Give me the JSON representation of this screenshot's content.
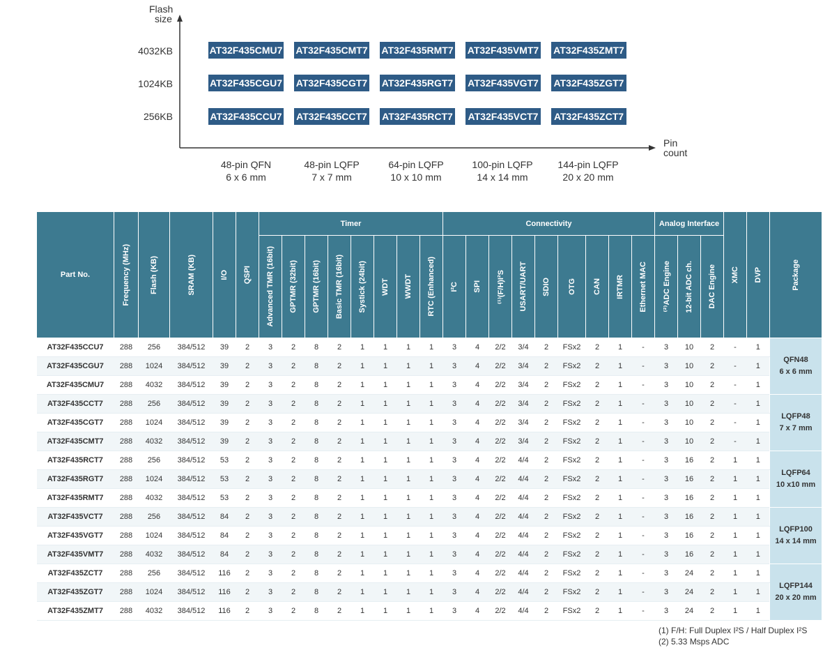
{
  "diagram": {
    "y_axis_label": [
      "Flash",
      "size"
    ],
    "x_axis_label": [
      "Pin",
      "count"
    ],
    "flash_sizes": [
      "4032KB",
      "1024KB",
      "256KB"
    ],
    "grid": [
      [
        "AT32F435CMU7",
        "AT32F435CMT7",
        "AT32F435RMT7",
        "AT32F435VMT7",
        "AT32F435ZMT7"
      ],
      [
        "AT32F435CGU7",
        "AT32F435CGT7",
        "AT32F435RGT7",
        "AT32F435VGT7",
        "AT32F435ZGT7"
      ],
      [
        "AT32F435CCU7",
        "AT32F435CCT7",
        "AT32F435RCT7",
        "AT32F435VCT7",
        "AT32F435ZCT7"
      ]
    ],
    "packages": [
      {
        "name": "48-pin QFN",
        "size": "6 x 6 mm"
      },
      {
        "name": "48-pin LQFP",
        "size": "7 x 7 mm"
      },
      {
        "name": "64-pin LQFP",
        "size": "10 x 10 mm"
      },
      {
        "name": "100-pin LQFP",
        "size": "14 x 14 mm"
      },
      {
        "name": "144-pin LQFP",
        "size": "20 x 20 mm"
      }
    ],
    "colors": {
      "chip_bg": "#2e5b86",
      "chip_text": "#ffffff"
    }
  },
  "table": {
    "header": {
      "part_no": "Part No.",
      "frequency": "Frequency (MHz)",
      "flash": "Flash (KB)",
      "sram": "SRAM (KB)",
      "io": "I/O",
      "qspi": "QSPI",
      "timer_group": "Timer",
      "timer": [
        "Advanced TMR (16bit)",
        "GPTMR (32bit)",
        "GPTMR (16bit)",
        "Basic TMR (16bit)",
        "Systick (24bit)",
        "WDT",
        "WWDT",
        "RTC (Enhanced)"
      ],
      "conn_group": "Connectivity",
      "conn": [
        "I²C",
        "SPI",
        "⁽¹⁾(F/H)I²S",
        "USART/UART",
        "SDIO",
        "OTG",
        "CAN",
        "IRTMR",
        "Ethernet MAC"
      ],
      "analog_group": "Analog Interface",
      "analog": [
        "⁽²⁾ADC Engine",
        "12-bit ADC ch.",
        "DAC Engine"
      ],
      "xmc": "XMC",
      "dvp": "DVP",
      "package": "Package"
    },
    "rows": [
      [
        "AT32F435CCU7",
        "288",
        "256",
        "384/512",
        "39",
        "2",
        "3",
        "2",
        "8",
        "2",
        "1",
        "1",
        "1",
        "1",
        "3",
        "4",
        "2/2",
        "3/4",
        "2",
        "FSx2",
        "2",
        "1",
        "-",
        "3",
        "10",
        "2",
        "-",
        "1"
      ],
      [
        "AT32F435CGU7",
        "288",
        "1024",
        "384/512",
        "39",
        "2",
        "3",
        "2",
        "8",
        "2",
        "1",
        "1",
        "1",
        "1",
        "3",
        "4",
        "2/2",
        "3/4",
        "2",
        "FSx2",
        "2",
        "1",
        "-",
        "3",
        "10",
        "2",
        "-",
        "1"
      ],
      [
        "AT32F435CMU7",
        "288",
        "4032",
        "384/512",
        "39",
        "2",
        "3",
        "2",
        "8",
        "2",
        "1",
        "1",
        "1",
        "1",
        "3",
        "4",
        "2/2",
        "3/4",
        "2",
        "FSx2",
        "2",
        "1",
        "-",
        "3",
        "10",
        "2",
        "-",
        "1"
      ],
      [
        "AT32F435CCT7",
        "288",
        "256",
        "384/512",
        "39",
        "2",
        "3",
        "2",
        "8",
        "2",
        "1",
        "1",
        "1",
        "1",
        "3",
        "4",
        "2/2",
        "3/4",
        "2",
        "FSx2",
        "2",
        "1",
        "-",
        "3",
        "10",
        "2",
        "-",
        "1"
      ],
      [
        "AT32F435CGT7",
        "288",
        "1024",
        "384/512",
        "39",
        "2",
        "3",
        "2",
        "8",
        "2",
        "1",
        "1",
        "1",
        "1",
        "3",
        "4",
        "2/2",
        "3/4",
        "2",
        "FSx2",
        "2",
        "1",
        "-",
        "3",
        "10",
        "2",
        "-",
        "1"
      ],
      [
        "AT32F435CMT7",
        "288",
        "4032",
        "384/512",
        "39",
        "2",
        "3",
        "2",
        "8",
        "2",
        "1",
        "1",
        "1",
        "1",
        "3",
        "4",
        "2/2",
        "3/4",
        "2",
        "FSx2",
        "2",
        "1",
        "-",
        "3",
        "10",
        "2",
        "-",
        "1"
      ],
      [
        "AT32F435RCT7",
        "288",
        "256",
        "384/512",
        "53",
        "2",
        "3",
        "2",
        "8",
        "2",
        "1",
        "1",
        "1",
        "1",
        "3",
        "4",
        "2/2",
        "4/4",
        "2",
        "FSx2",
        "2",
        "1",
        "-",
        "3",
        "16",
        "2",
        "1",
        "1"
      ],
      [
        "AT32F435RGT7",
        "288",
        "1024",
        "384/512",
        "53",
        "2",
        "3",
        "2",
        "8",
        "2",
        "1",
        "1",
        "1",
        "1",
        "3",
        "4",
        "2/2",
        "4/4",
        "2",
        "FSx2",
        "2",
        "1",
        "-",
        "3",
        "16",
        "2",
        "1",
        "1"
      ],
      [
        "AT32F435RMT7",
        "288",
        "4032",
        "384/512",
        "53",
        "2",
        "3",
        "2",
        "8",
        "2",
        "1",
        "1",
        "1",
        "1",
        "3",
        "4",
        "2/2",
        "4/4",
        "2",
        "FSx2",
        "2",
        "1",
        "-",
        "3",
        "16",
        "2",
        "1",
        "1"
      ],
      [
        "AT32F435VCT7",
        "288",
        "256",
        "384/512",
        "84",
        "2",
        "3",
        "2",
        "8",
        "2",
        "1",
        "1",
        "1",
        "1",
        "3",
        "4",
        "2/2",
        "4/4",
        "2",
        "FSx2",
        "2",
        "1",
        "-",
        "3",
        "16",
        "2",
        "1",
        "1"
      ],
      [
        "AT32F435VGT7",
        "288",
        "1024",
        "384/512",
        "84",
        "2",
        "3",
        "2",
        "8",
        "2",
        "1",
        "1",
        "1",
        "1",
        "3",
        "4",
        "2/2",
        "4/4",
        "2",
        "FSx2",
        "2",
        "1",
        "-",
        "3",
        "16",
        "2",
        "1",
        "1"
      ],
      [
        "AT32F435VMT7",
        "288",
        "4032",
        "384/512",
        "84",
        "2",
        "3",
        "2",
        "8",
        "2",
        "1",
        "1",
        "1",
        "1",
        "3",
        "4",
        "2/2",
        "4/4",
        "2",
        "FSx2",
        "2",
        "1",
        "-",
        "3",
        "16",
        "2",
        "1",
        "1"
      ],
      [
        "AT32F435ZCT7",
        "288",
        "256",
        "384/512",
        "116",
        "2",
        "3",
        "2",
        "8",
        "2",
        "1",
        "1",
        "1",
        "1",
        "3",
        "4",
        "2/2",
        "4/4",
        "2",
        "FSx2",
        "2",
        "1",
        "-",
        "3",
        "24",
        "2",
        "1",
        "1"
      ],
      [
        "AT32F435ZGT7",
        "288",
        "1024",
        "384/512",
        "116",
        "2",
        "3",
        "2",
        "8",
        "2",
        "1",
        "1",
        "1",
        "1",
        "3",
        "4",
        "2/2",
        "4/4",
        "2",
        "FSx2",
        "2",
        "1",
        "-",
        "3",
        "24",
        "2",
        "1",
        "1"
      ],
      [
        "AT32F435ZMT7",
        "288",
        "4032",
        "384/512",
        "116",
        "2",
        "3",
        "2",
        "8",
        "2",
        "1",
        "1",
        "1",
        "1",
        "3",
        "4",
        "2/2",
        "4/4",
        "2",
        "FSx2",
        "2",
        "1",
        "-",
        "3",
        "24",
        "2",
        "1",
        "1"
      ]
    ],
    "packages": [
      {
        "name": "QFN48",
        "size": "6 x 6 mm"
      },
      {
        "name": "LQFP48",
        "size": "7 x 7 mm"
      },
      {
        "name": "LQFP64",
        "size": "10 x10 mm"
      },
      {
        "name": "LQFP100",
        "size": "14 x 14 mm"
      },
      {
        "name": "LQFP144",
        "size": "20 x 20 mm"
      }
    ],
    "colors": {
      "header_bg": "#3d7a90",
      "package_bg": "#c9e2ec"
    }
  },
  "footnotes": [
    "(1) F/H: Full Duplex I²S / Half Duplex I²S",
    "(2) 5.33 Msps ADC"
  ]
}
